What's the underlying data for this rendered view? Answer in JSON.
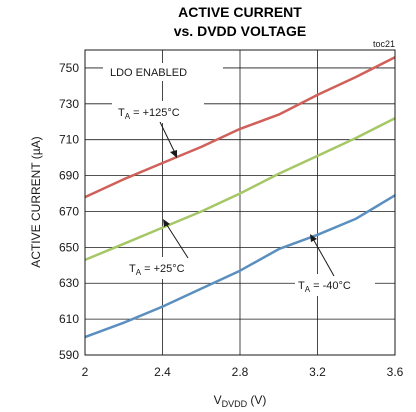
{
  "chart_data": {
    "type": "line",
    "title_line1": "ACTIVE CURRENT",
    "title_line2": "vs. DVDD VOLTAGE",
    "code": "toc21",
    "xlabel_main": "V",
    "xlabel_sub": "DVDD",
    "xlabel_unit": " (V)",
    "ylabel": "ACTIVE CURRENT (µA)",
    "xlim": [
      2.0,
      3.6
    ],
    "ylim": [
      590,
      760
    ],
    "x_ticks": [
      2,
      2.4,
      2.8,
      3.2,
      3.6
    ],
    "x_tick_labels": [
      "2",
      "2.4",
      "2.8",
      "3.2",
      "3.6"
    ],
    "y_ticks": [
      590,
      610,
      630,
      650,
      670,
      690,
      710,
      730,
      750
    ],
    "y_tick_labels": [
      "590",
      "610",
      "630",
      "650",
      "670",
      "690",
      "710",
      "730",
      "750"
    ],
    "grid": true,
    "annotation": "LDO ENABLED",
    "series": [
      {
        "name_main": "T",
        "name_sub": "A",
        "name_rest": " = +125°C",
        "color": "#d0605a",
        "x": [
          2.0,
          2.2,
          2.4,
          2.6,
          2.8,
          3.0,
          3.2,
          3.4,
          3.6
        ],
        "y": [
          678,
          688,
          697,
          706,
          716,
          724,
          735,
          745,
          756
        ]
      },
      {
        "name_main": "T",
        "name_sub": "A",
        "name_rest": " = +25°C",
        "color": "#a6c766",
        "x": [
          2.0,
          2.2,
          2.4,
          2.6,
          2.8,
          3.0,
          3.2,
          3.4,
          3.6
        ],
        "y": [
          643,
          652,
          661,
          670,
          680,
          691,
          701,
          711,
          722
        ]
      },
      {
        "name_main": "T",
        "name_sub": "A",
        "name_rest": " = -40°C",
        "color": "#5b8fbf",
        "x": [
          2.0,
          2.2,
          2.4,
          2.6,
          2.8,
          3.0,
          3.2,
          3.4,
          3.6
        ],
        "y": [
          600,
          608,
          617,
          627,
          637,
          649,
          657,
          666,
          679
        ]
      }
    ]
  }
}
